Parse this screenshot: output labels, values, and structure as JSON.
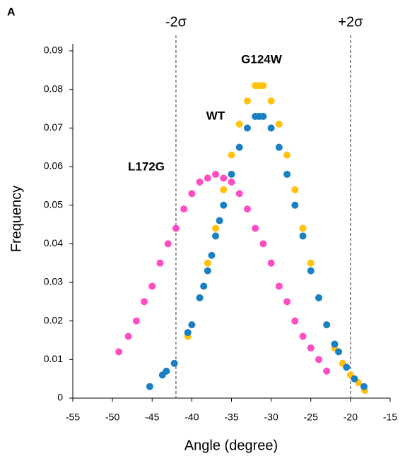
{
  "chart_data": {
    "type": "scatter",
    "panel_label": "A",
    "x_label": "Angle (degree)",
    "y_label": "Frequency",
    "xlim": [
      -55,
      -15
    ],
    "xticks": [
      -55,
      -50,
      -45,
      -40,
      -35,
      -30,
      -25,
      -20,
      -15
    ],
    "ylim": [
      0,
      0.09
    ],
    "yticks": [
      0,
      0.01,
      0.02,
      0.03,
      0.04,
      0.05,
      0.06,
      0.07,
      0.08,
      0.09
    ],
    "reference_lines": [
      {
        "x": -42,
        "label": "-2σ"
      },
      {
        "x": -20,
        "label": "+2σ"
      }
    ],
    "series": [
      {
        "name": "WT",
        "color": "#1a80c4",
        "label_color": "#1b6fa8",
        "x": [
          -45.3,
          -43.7,
          -43.2,
          -42.2,
          -40.5,
          -40,
          -39,
          -38.5,
          -38,
          -37.5,
          -37,
          -36.5,
          -36,
          -35,
          -34,
          -33,
          -32,
          -31.5,
          -31,
          -30,
          -29,
          -28,
          -27,
          -26,
          -25,
          -24,
          -23,
          -22,
          -21.5,
          -20.5,
          -19.5,
          -18.3
        ],
        "values": [
          0.003,
          0.006,
          0.007,
          0.009,
          0.017,
          0.019,
          0.026,
          0.029,
          0.033,
          0.037,
          0.042,
          0.046,
          0.05,
          0.058,
          0.065,
          0.07,
          0.073,
          0.073,
          0.073,
          0.07,
          0.065,
          0.058,
          0.05,
          0.042,
          0.033,
          0.026,
          0.019,
          0.014,
          0.012,
          0.008,
          0.005,
          0.003
        ]
      },
      {
        "name": "G124W",
        "color": "#ffc20e",
        "label_color": "#f5b800",
        "x": [
          -40.5,
          -40,
          -39,
          -38,
          -37,
          -36,
          -35,
          -34,
          -33,
          -32,
          -31.5,
          -31,
          -30,
          -29,
          -28,
          -27,
          -26,
          -25,
          -24,
          -23,
          -22,
          -21,
          -20,
          -19,
          -18.2
        ],
        "values": [
          0.016,
          0.019,
          0.026,
          0.035,
          0.044,
          0.054,
          0.063,
          0.071,
          0.077,
          0.081,
          0.081,
          0.081,
          0.077,
          0.071,
          0.063,
          0.054,
          0.044,
          0.035,
          0.026,
          0.019,
          0.013,
          0.009,
          0.006,
          0.004,
          0.002
        ]
      },
      {
        "name": "L172G",
        "color": "#ff4dc4",
        "label_color": "#ee2d9f",
        "x": [
          -49.2,
          -48,
          -47,
          -46,
          -45,
          -44,
          -43,
          -42,
          -41,
          -40,
          -39,
          -38,
          -37,
          -36,
          -35,
          -34,
          -33,
          -32,
          -31,
          -30,
          -29,
          -28,
          -27,
          -26,
          -25,
          -24,
          -23
        ],
        "values": [
          0.012,
          0.016,
          0.02,
          0.025,
          0.029,
          0.035,
          0.04,
          0.044,
          0.049,
          0.053,
          0.056,
          0.057,
          0.058,
          0.057,
          0.056,
          0.053,
          0.049,
          0.044,
          0.04,
          0.035,
          0.029,
          0.025,
          0.02,
          0.016,
          0.013,
          0.01,
          0.007
        ]
      }
    ]
  }
}
